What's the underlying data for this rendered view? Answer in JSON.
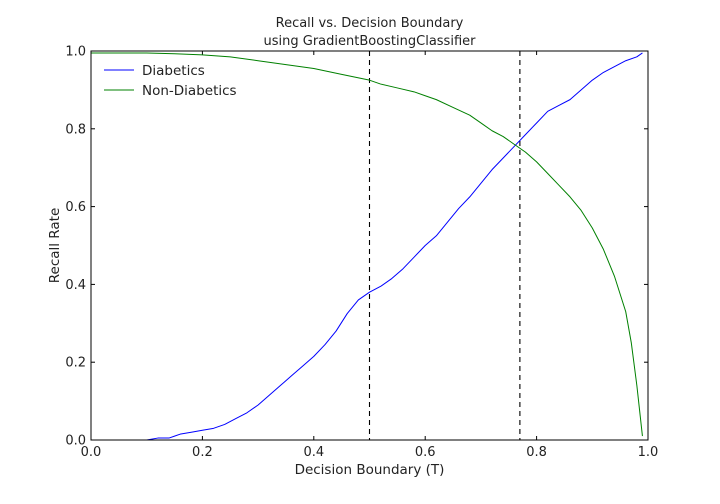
{
  "chart_data": {
    "type": "line",
    "title": "Recall vs. Decision Boundary",
    "subtitle": "using GradientBoostingClassifier",
    "xlabel": "Decision Boundary (T)",
    "ylabel": "Recall Rate",
    "xlim": [
      0.0,
      1.0
    ],
    "ylim": [
      0.0,
      1.0
    ],
    "xticks": [
      "0.0",
      "0.2",
      "0.4",
      "0.6",
      "0.8",
      "1.0"
    ],
    "yticks": [
      "0.0",
      "0.2",
      "0.4",
      "0.6",
      "0.8",
      "1.0"
    ],
    "grid": false,
    "legend_position": "top-left",
    "vlines": [
      0.5,
      0.77
    ],
    "series": [
      {
        "name": "Diabetics",
        "color": "#0000ff",
        "x": [
          0.0,
          0.05,
          0.1,
          0.12,
          0.14,
          0.15,
          0.16,
          0.18,
          0.2,
          0.22,
          0.24,
          0.26,
          0.28,
          0.3,
          0.32,
          0.34,
          0.36,
          0.38,
          0.4,
          0.42,
          0.44,
          0.46,
          0.48,
          0.5,
          0.52,
          0.54,
          0.56,
          0.58,
          0.6,
          0.62,
          0.64,
          0.66,
          0.68,
          0.7,
          0.72,
          0.74,
          0.76,
          0.78,
          0.8,
          0.82,
          0.84,
          0.86,
          0.88,
          0.9,
          0.92,
          0.94,
          0.96,
          0.98,
          0.99
        ],
        "y": [
          0.0,
          0.0,
          0.0,
          0.005,
          0.005,
          0.01,
          0.015,
          0.02,
          0.025,
          0.03,
          0.04,
          0.055,
          0.07,
          0.09,
          0.115,
          0.14,
          0.165,
          0.19,
          0.215,
          0.245,
          0.28,
          0.325,
          0.36,
          0.38,
          0.395,
          0.415,
          0.44,
          0.47,
          0.5,
          0.525,
          0.56,
          0.595,
          0.625,
          0.66,
          0.695,
          0.725,
          0.755,
          0.785,
          0.815,
          0.845,
          0.86,
          0.875,
          0.9,
          0.925,
          0.945,
          0.96,
          0.975,
          0.985,
          0.995
        ]
      },
      {
        "name": "Non-Diabetics",
        "color": "#008000",
        "x": [
          0.0,
          0.1,
          0.15,
          0.2,
          0.25,
          0.3,
          0.35,
          0.4,
          0.45,
          0.5,
          0.52,
          0.55,
          0.58,
          0.6,
          0.62,
          0.65,
          0.68,
          0.7,
          0.72,
          0.74,
          0.76,
          0.78,
          0.8,
          0.82,
          0.84,
          0.86,
          0.88,
          0.9,
          0.92,
          0.94,
          0.96,
          0.97,
          0.98,
          0.99
        ],
        "y": [
          0.995,
          0.995,
          0.993,
          0.99,
          0.985,
          0.975,
          0.965,
          0.955,
          0.94,
          0.925,
          0.915,
          0.905,
          0.895,
          0.885,
          0.875,
          0.855,
          0.835,
          0.815,
          0.795,
          0.78,
          0.76,
          0.74,
          0.715,
          0.685,
          0.655,
          0.625,
          0.59,
          0.545,
          0.49,
          0.42,
          0.33,
          0.25,
          0.14,
          0.01
        ]
      }
    ]
  }
}
